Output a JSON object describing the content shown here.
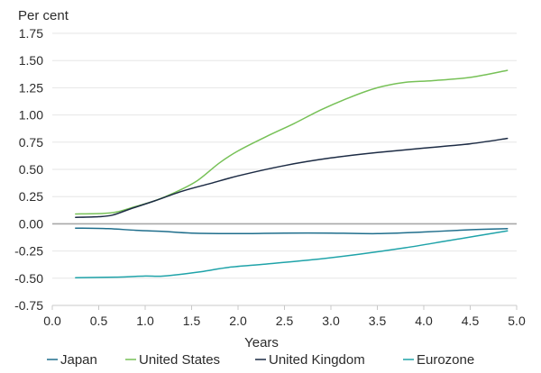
{
  "chart_data": {
    "type": "line",
    "ylabel": "Per cent",
    "xlabel": "Years",
    "xlim": [
      0.0,
      5.0
    ],
    "ylim": [
      -0.75,
      1.75
    ],
    "xticks": [
      "0.0",
      "0.5",
      "1.0",
      "1.5",
      "2.0",
      "2.5",
      "3.0",
      "3.5",
      "4.0",
      "4.5",
      "5.0"
    ],
    "yticks": [
      "1.75",
      "1.50",
      "1.25",
      "1.00",
      "0.75",
      "0.50",
      "0.25",
      "0.00",
      "-0.25",
      "-0.50",
      "-0.75"
    ],
    "grid": "horizontal",
    "zero_line": true,
    "legend_position": "bottom",
    "series": [
      {
        "name": "Japan",
        "color": "#1f6e8c",
        "points": [
          [
            0.25,
            -0.04
          ],
          [
            0.6,
            -0.045
          ],
          [
            0.9,
            -0.06
          ],
          [
            1.2,
            -0.07
          ],
          [
            1.5,
            -0.085
          ],
          [
            2.0,
            -0.09
          ],
          [
            2.5,
            -0.085
          ],
          [
            3.0,
            -0.085
          ],
          [
            3.5,
            -0.09
          ],
          [
            4.0,
            -0.075
          ],
          [
            4.5,
            -0.055
          ],
          [
            4.9,
            -0.045
          ]
        ]
      },
      {
        "name": "United States",
        "color": "#77c157",
        "points": [
          [
            0.25,
            0.09
          ],
          [
            0.55,
            0.095
          ],
          [
            0.7,
            0.11
          ],
          [
            0.9,
            0.16
          ],
          [
            1.1,
            0.21
          ],
          [
            1.3,
            0.28
          ],
          [
            1.55,
            0.39
          ],
          [
            1.8,
            0.56
          ],
          [
            2.0,
            0.67
          ],
          [
            2.3,
            0.8
          ],
          [
            2.6,
            0.92
          ],
          [
            2.9,
            1.05
          ],
          [
            3.2,
            1.16
          ],
          [
            3.5,
            1.25
          ],
          [
            3.8,
            1.3
          ],
          [
            4.1,
            1.315
          ],
          [
            4.5,
            1.345
          ],
          [
            4.9,
            1.41
          ]
        ]
      },
      {
        "name": "United Kingdom",
        "color": "#1c2b44",
        "points": [
          [
            0.25,
            0.06
          ],
          [
            0.5,
            0.065
          ],
          [
            0.65,
            0.08
          ],
          [
            0.85,
            0.14
          ],
          [
            1.1,
            0.21
          ],
          [
            1.4,
            0.3
          ],
          [
            1.7,
            0.37
          ],
          [
            2.0,
            0.44
          ],
          [
            2.5,
            0.535
          ],
          [
            3.0,
            0.605
          ],
          [
            3.5,
            0.655
          ],
          [
            4.0,
            0.695
          ],
          [
            4.5,
            0.735
          ],
          [
            4.9,
            0.785
          ]
        ]
      },
      {
        "name": "Eurozone",
        "color": "#1fa3a9",
        "points": [
          [
            0.25,
            -0.495
          ],
          [
            0.7,
            -0.49
          ],
          [
            1.0,
            -0.48
          ],
          [
            1.2,
            -0.48
          ],
          [
            1.6,
            -0.44
          ],
          [
            1.9,
            -0.4
          ],
          [
            2.3,
            -0.37
          ],
          [
            2.8,
            -0.33
          ],
          [
            3.3,
            -0.28
          ],
          [
            3.8,
            -0.22
          ],
          [
            4.3,
            -0.15
          ],
          [
            4.9,
            -0.065
          ]
        ]
      }
    ]
  }
}
